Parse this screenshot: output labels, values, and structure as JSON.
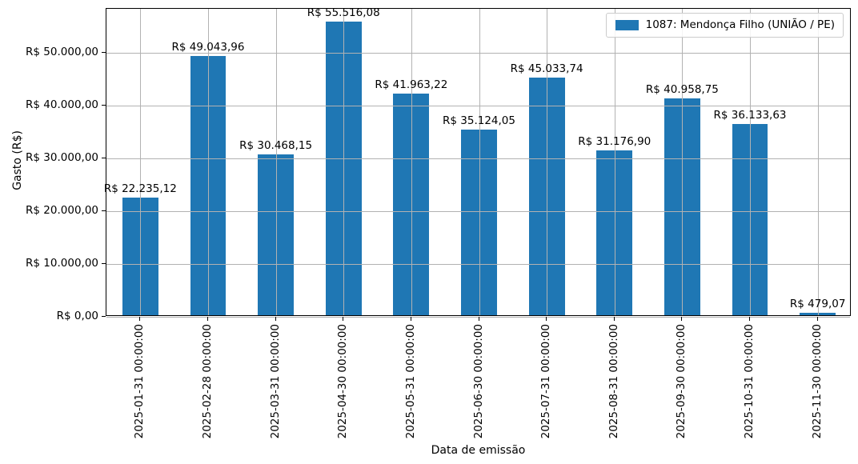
{
  "chart_data": {
    "type": "bar",
    "title": "",
    "xlabel": "Data de emissão",
    "ylabel": "Gasto (R$)",
    "series_name": "1087: Mendonça Filho (UNIÃO / PE)",
    "categories": [
      "2025-01-31 00:00:00",
      "2025-02-28 00:00:00",
      "2025-03-31 00:00:00",
      "2025-04-30 00:00:00",
      "2025-05-31 00:00:00",
      "2025-06-30 00:00:00",
      "2025-07-31 00:00:00",
      "2025-08-31 00:00:00",
      "2025-09-30 00:00:00",
      "2025-10-31 00:00:00",
      "2025-11-30 00:00:00"
    ],
    "values": [
      22235.12,
      49043.96,
      30468.15,
      55516.08,
      41963.22,
      35124.05,
      45033.74,
      31176.9,
      40958.75,
      36133.63,
      479.07
    ],
    "bar_labels": [
      "R$ 22.235,12",
      "R$ 49.043,96",
      "R$ 30.468,15",
      "R$ 55.516,08",
      "R$ 41.963,22",
      "R$ 35.124,05",
      "R$ 45.033,74",
      "R$ 31.176,90",
      "R$ 40.958,75",
      "R$ 36.133,63",
      "R$ 479,07"
    ],
    "yticks": [
      0,
      10000,
      20000,
      30000,
      40000,
      50000
    ],
    "ytick_labels": [
      "R$ 0,00",
      "R$ 10.000,00",
      "R$ 20.000,00",
      "R$ 30.000,00",
      "R$ 40.000,00",
      "R$ 50.000,00"
    ],
    "ylim": [
      0,
      58292
    ],
    "grid": true,
    "grid_on_top": true,
    "legend_position": "upper right",
    "bar_color": "#1f77b4",
    "grid_color": "#b2b2b2",
    "background": "#ffffff"
  }
}
